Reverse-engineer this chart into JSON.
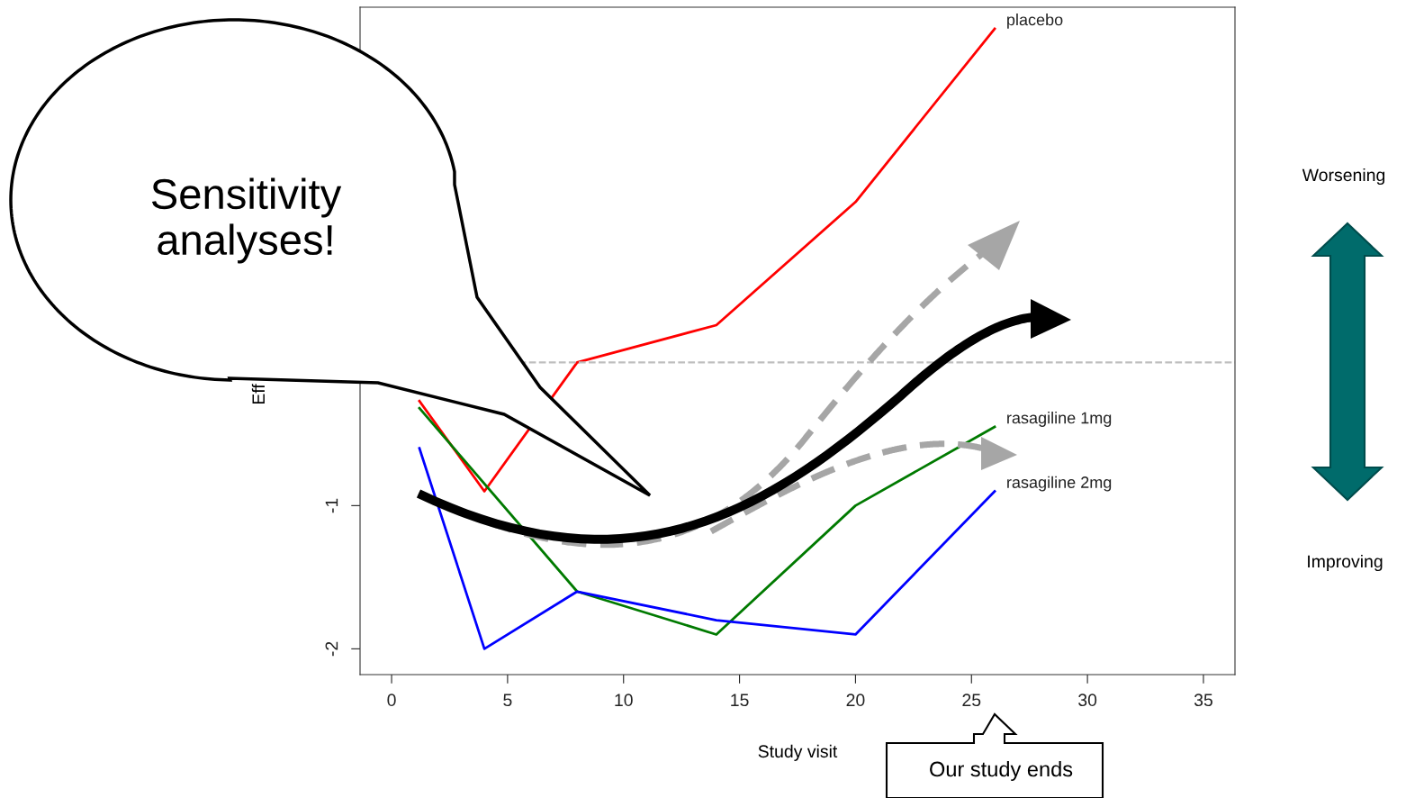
{
  "chart_data": {
    "type": "line",
    "xlabel": "Study visit",
    "ylabel": "Eff",
    "series": [
      {
        "name": "placebo",
        "color": "#ff0000",
        "x": [
          1.2,
          4,
          8,
          14,
          20,
          26
        ],
        "values": [
          -0.27,
          -0.9,
          0,
          0.26,
          1.12,
          2.33
        ]
      },
      {
        "name": "rasagiline 1mg",
        "color": "#007a00",
        "x": [
          1.2,
          8,
          14,
          20,
          26
        ],
        "values": [
          -0.32,
          -1.6,
          -1.9,
          -1.0,
          -0.45
        ]
      },
      {
        "name": "rasagiline 2mg",
        "color": "#0000ff",
        "x": [
          1.2,
          4,
          8,
          14,
          20,
          26
        ],
        "values": [
          -0.6,
          -2.0,
          -1.6,
          -1.8,
          -1.9,
          -0.9
        ]
      }
    ],
    "xlim": [
      -1.36,
      36.36
    ],
    "ylim": [
      -2.18,
      2.48
    ],
    "xticks": [
      0,
      5,
      10,
      15,
      20,
      25,
      30,
      35
    ],
    "yticks": [
      -2,
      -1
    ],
    "ref_lines": [
      {
        "axis": "y",
        "value": 0,
        "color": "#bfbfbf",
        "line_style": "dashed"
      }
    ],
    "grid": false,
    "legend": false,
    "marker": "none",
    "line_style": "solid",
    "annotations": [
      "Sensitivity analyses!",
      "Worsening",
      "Improving",
      "Our study ends"
    ]
  }
}
